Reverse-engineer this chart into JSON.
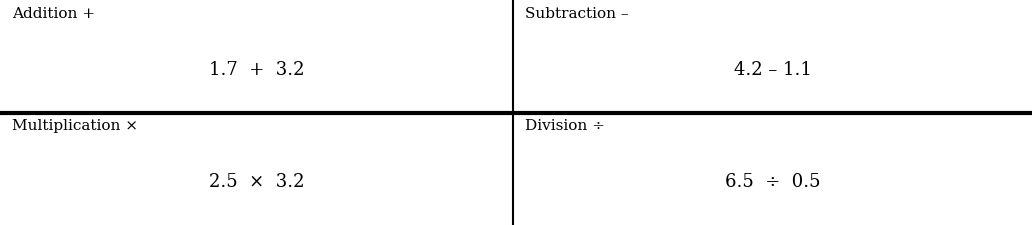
{
  "bg_color": "#ffffff",
  "text_color": "#000000",
  "line_color": "#000000",
  "cells": [
    {
      "label": "Addition +",
      "expression": "1.7  +  3.2",
      "col": 0,
      "row": 0
    },
    {
      "label": "Subtraction –",
      "expression": "4.2 – 1.1",
      "col": 1,
      "row": 0
    },
    {
      "label": "Multiplication ×",
      "expression": "2.5  ×  3.2",
      "col": 0,
      "row": 1
    },
    {
      "label": "Division ÷",
      "expression": "6.5  ÷  0.5",
      "col": 1,
      "row": 1
    }
  ],
  "label_fontsize": 11,
  "expr_fontsize": 13,
  "horiz_linewidth": 3.0,
  "vert_linewidth": 1.5,
  "col_split": 0.497,
  "row_split": 0.5,
  "fig_width": 10.32,
  "fig_height": 2.25,
  "dpi": 100
}
